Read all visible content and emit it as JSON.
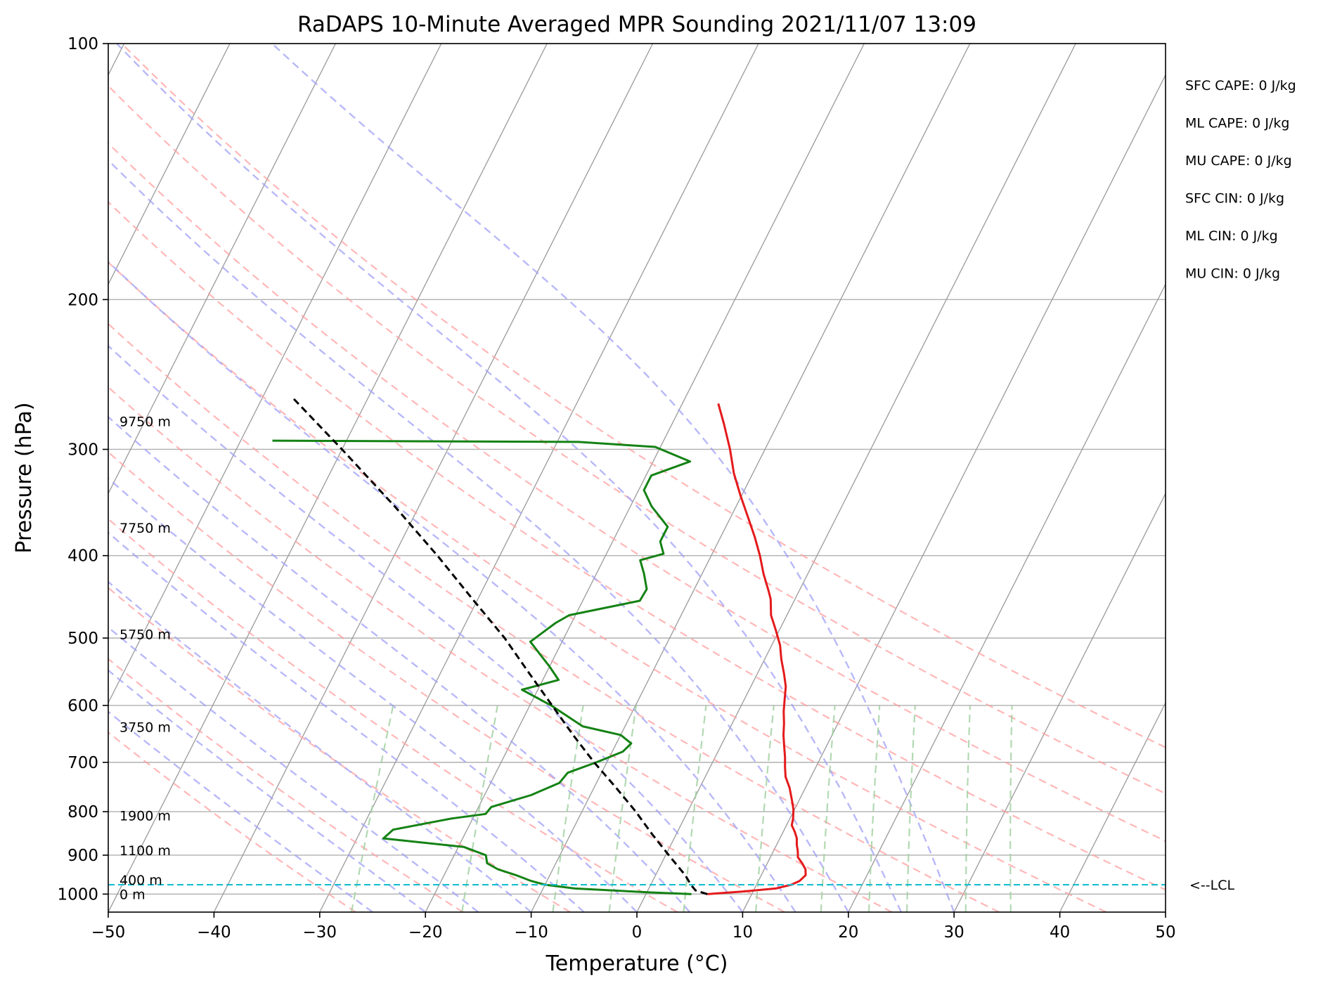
{
  "chart_data": {
    "type": "skew-t",
    "title": "RaDAPS 10-Minute Averaged MPR Sounding 2021/11/07 13:09",
    "xlabel": "Temperature (°C)",
    "ylabel": "Pressure (hPa)",
    "xlim": [
      -50,
      50
    ],
    "ylim": [
      1050,
      100
    ],
    "y_scale": "log",
    "grid": true,
    "x_ticks": [
      -50,
      -40,
      -30,
      -20,
      -10,
      0,
      10,
      20,
      30,
      40,
      50
    ],
    "x_tick_labels": [
      "−50",
      "−40",
      "−30",
      "−20",
      "−10",
      "0",
      "10",
      "20",
      "30",
      "40",
      "50"
    ],
    "y_ticks": [
      100,
      200,
      300,
      400,
      500,
      600,
      700,
      800,
      900,
      1000
    ],
    "y_tick_labels": [
      "100",
      "200",
      "300",
      "400",
      "500",
      "600",
      "700",
      "800",
      "900",
      "1000"
    ],
    "isotherm_temps": [
      -130,
      -120,
      -110,
      -100,
      -90,
      -80,
      -70,
      -60,
      -50,
      -40,
      -30,
      -20,
      -10,
      0,
      10,
      20,
      30,
      40,
      50
    ],
    "dry_adiabat_temps": [
      -30,
      -20,
      -10,
      0,
      10,
      20,
      30,
      40,
      50,
      60,
      70,
      80
    ],
    "moist_adiabat_temps": [
      -25,
      -20,
      -15,
      -10,
      -5,
      0,
      5,
      10,
      15,
      20,
      25,
      30
    ],
    "mixing_ratio_lines": [
      0.4,
      1,
      2,
      3,
      5,
      8,
      12,
      16,
      20,
      28,
      36
    ],
    "series": [
      {
        "name": "",
        "role": "temperature",
        "color": "#e41a1c",
        "points": [
          [
            1000,
            5.8
          ],
          [
            993,
            9.0
          ],
          [
            985,
            12.0
          ],
          [
            975,
            13.3
          ],
          [
            965,
            13.9
          ],
          [
            950,
            14.2
          ],
          [
            935,
            13.9
          ],
          [
            920,
            13.3
          ],
          [
            905,
            12.6
          ],
          [
            890,
            12.3
          ],
          [
            875,
            11.9
          ],
          [
            860,
            11.6
          ],
          [
            845,
            11.1
          ],
          [
            830,
            10.5
          ],
          [
            815,
            10.3
          ],
          [
            795,
            9.9
          ],
          [
            775,
            9.3
          ],
          [
            750,
            8.5
          ],
          [
            728,
            7.6
          ],
          [
            710,
            7.1
          ],
          [
            690,
            6.6
          ],
          [
            670,
            6.0
          ],
          [
            650,
            5.4
          ],
          [
            630,
            4.9
          ],
          [
            610,
            4.3
          ],
          [
            590,
            3.8
          ],
          [
            570,
            3.3
          ],
          [
            550,
            2.5
          ],
          [
            530,
            1.6
          ],
          [
            510,
            0.8
          ],
          [
            490,
            -0.3
          ],
          [
            470,
            -1.5
          ],
          [
            450,
            -2.3
          ],
          [
            440,
            -2.9
          ],
          [
            420,
            -4.2
          ],
          [
            400,
            -5.4
          ],
          [
            380,
            -6.8
          ],
          [
            360,
            -8.4
          ],
          [
            340,
            -10.1
          ],
          [
            320,
            -11.8
          ],
          [
            300,
            -13.3
          ],
          [
            280,
            -15.1
          ],
          [
            265,
            -16.6
          ]
        ]
      },
      {
        "name": "",
        "role": "dewpoint",
        "color": "#148214",
        "points": [
          [
            1000,
            4.3
          ],
          [
            995,
            0.0
          ],
          [
            985,
            -7.0
          ],
          [
            975,
            -10.0
          ],
          [
            965,
            -11.5
          ],
          [
            950,
            -13.2
          ],
          [
            935,
            -15.2
          ],
          [
            920,
            -16.5
          ],
          [
            900,
            -17.0
          ],
          [
            880,
            -19.5
          ],
          [
            860,
            -27.5
          ],
          [
            840,
            -27.0
          ],
          [
            815,
            -22.0
          ],
          [
            805,
            -19.0
          ],
          [
            790,
            -18.8
          ],
          [
            765,
            -15.6
          ],
          [
            740,
            -13.5
          ],
          [
            720,
            -13.2
          ],
          [
            700,
            -11.0
          ],
          [
            680,
            -9.0
          ],
          [
            665,
            -8.6
          ],
          [
            650,
            -10.0
          ],
          [
            635,
            -14.0
          ],
          [
            600,
            -18.0
          ],
          [
            575,
            -21.5
          ],
          [
            560,
            -18.5
          ],
          [
            540,
            -20.0
          ],
          [
            505,
            -23.0
          ],
          [
            480,
            -21.5
          ],
          [
            470,
            -20.6
          ],
          [
            452,
            -14.6
          ],
          [
            438,
            -14.5
          ],
          [
            420,
            -15.5
          ],
          [
            405,
            -16.5
          ],
          [
            398,
            -14.6
          ],
          [
            385,
            -15.5
          ],
          [
            370,
            -15.5
          ],
          [
            350,
            -18.0
          ],
          [
            335,
            -19.5
          ],
          [
            322,
            -19.5
          ],
          [
            310,
            -16.5
          ],
          [
            298,
            -20.5
          ],
          [
            294,
            -28.0
          ],
          [
            293,
            -57.0
          ]
        ]
      },
      {
        "name": "",
        "role": "parcel",
        "color": "#000000",
        "points": [
          [
            1000,
            5.8
          ],
          [
            990,
            4.5
          ],
          [
            975,
            3.8
          ],
          [
            950,
            2.8
          ],
          [
            900,
            0.3
          ],
          [
            850,
            -2.3
          ],
          [
            800,
            -4.9
          ],
          [
            750,
            -7.9
          ],
          [
            700,
            -11.2
          ],
          [
            650,
            -14.5
          ],
          [
            600,
            -17.9
          ],
          [
            550,
            -21.6
          ],
          [
            500,
            -25.6
          ],
          [
            450,
            -30.5
          ],
          [
            400,
            -35.9
          ],
          [
            350,
            -42.3
          ],
          [
            300,
            -50.0
          ],
          [
            260,
            -57.3
          ]
        ]
      }
    ],
    "lcl": {
      "pressure": 975,
      "label": "<--LCL",
      "color": "#17becf"
    },
    "height_labels": [
      {
        "text": "0 m",
        "pressure": 1000
      },
      {
        "text": "400 m",
        "pressure": 962
      },
      {
        "text": "1100 m",
        "pressure": 888
      },
      {
        "text": "1900 m",
        "pressure": 808
      },
      {
        "text": "3750 m",
        "pressure": 636
      },
      {
        "text": "5750 m",
        "pressure": 495
      },
      {
        "text": "7750 m",
        "pressure": 371
      },
      {
        "text": "9750 m",
        "pressure": 278
      }
    ],
    "stats": [
      "SFC CAPE: 0 J/kg",
      "ML CAPE: 0 J/kg",
      "MU CAPE: 0 J/kg",
      "SFC CIN: 0 J/kg",
      "ML CIN: 0 J/kg",
      "MU CIN: 0 J/kg"
    ],
    "colors": {
      "grid": "#b0b0b0",
      "isotherm": "#9a9a9a",
      "dry_adiabat": "#ff9f9f",
      "moist_adiabat": "#a0a0f5",
      "mixing_ratio": "#9fcf9f"
    }
  }
}
